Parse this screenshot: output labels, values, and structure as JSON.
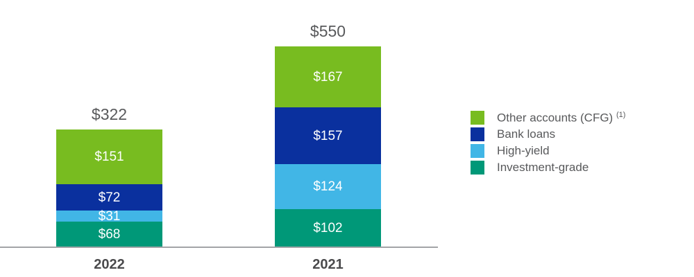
{
  "chart_data": {
    "type": "bar",
    "stacked": true,
    "title": "",
    "categories": [
      "2022",
      "2021"
    ],
    "totals": [
      "$322",
      "$550"
    ],
    "value_prefix": "$",
    "series": [
      {
        "name": "Investment-grade",
        "color": "#009878",
        "values": [
          68,
          102
        ]
      },
      {
        "name": "High-yield",
        "color": "#41b6e6",
        "values": [
          31,
          124
        ]
      },
      {
        "name": "Bank loans",
        "color": "#0a309e",
        "values": [
          72,
          157
        ]
      },
      {
        "name": "Other accounts (CFG)",
        "color": "#78bc20",
        "values": [
          151,
          167
        ]
      }
    ],
    "segment_labels": {
      "2022": [
        "$151",
        "$72",
        "$31",
        "$68"
      ],
      "2021": [
        "$167",
        "$157",
        "$124",
        "$102"
      ]
    },
    "axis_color": "#a2a4a7",
    "grid": false,
    "legend_position": "right"
  },
  "legend": {
    "items": [
      {
        "label": "Other accounts (CFG)",
        "superscript": "(1)",
        "color": "#78bc20"
      },
      {
        "label": "Bank loans",
        "superscript": "",
        "color": "#0a309e"
      },
      {
        "label": "High-yield",
        "superscript": "",
        "color": "#41b6e6"
      },
      {
        "label": "Investment-grade",
        "superscript": "",
        "color": "#009878"
      }
    ]
  }
}
